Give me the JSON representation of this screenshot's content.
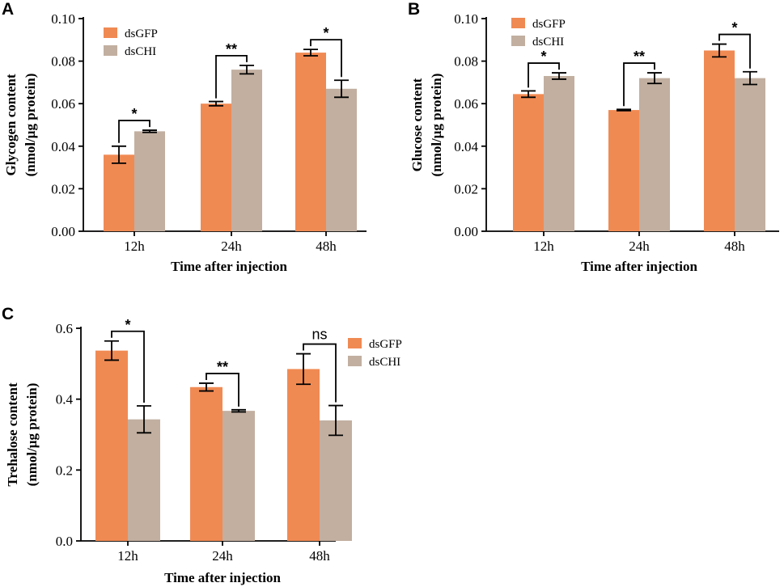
{
  "colors": {
    "dsGFP": "#F08A53",
    "dsCHI": "#C2AFA0"
  },
  "chart_data": [
    {
      "type": "bar",
      "panel": "A",
      "title": "",
      "categories": [
        "12h",
        "24h",
        "48h"
      ],
      "series": [
        {
          "name": "dsGFP",
          "values": [
            0.036,
            0.06,
            0.084
          ],
          "errors": [
            0.004,
            0.001,
            0.0015
          ]
        },
        {
          "name": "dsCHI",
          "values": [
            0.047,
            0.076,
            0.067
          ],
          "errors": [
            0.0005,
            0.002,
            0.004
          ]
        }
      ],
      "significance": [
        "*",
        "**",
        "*"
      ],
      "xlabel": "Time after injection",
      "ylabel_line1": "Glycogen content",
      "ylabel_line2": "(nmol/μg protein)",
      "ylim": [
        0,
        0.1
      ],
      "yticks": [
        "0.00",
        "0.02",
        "0.04",
        "0.06",
        "0.08",
        "0.10"
      ],
      "legend_position": "top-left"
    },
    {
      "type": "bar",
      "panel": "B",
      "title": "",
      "categories": [
        "12h",
        "24h",
        "48h"
      ],
      "series": [
        {
          "name": "dsGFP",
          "values": [
            0.0645,
            0.057,
            0.085
          ],
          "errors": [
            0.0015,
            0.0003,
            0.003
          ]
        },
        {
          "name": "dsCHI",
          "values": [
            0.073,
            0.072,
            0.072
          ],
          "errors": [
            0.0015,
            0.0025,
            0.003
          ]
        }
      ],
      "significance": [
        "*",
        "**",
        "*"
      ],
      "xlabel": "Time after injection",
      "ylabel_line1": "Glucose content",
      "ylabel_line2": "(nmol/μg protein)",
      "ylim": [
        0,
        0.1
      ],
      "yticks": [
        "0.00",
        "0.02",
        "0.04",
        "0.06",
        "0.08",
        "0.10"
      ],
      "legend_position": "top-left"
    },
    {
      "type": "bar",
      "panel": "C",
      "title": "",
      "categories": [
        "12h",
        "24h",
        "48h"
      ],
      "series": [
        {
          "name": "dsGFP",
          "values": [
            0.537,
            0.434,
            0.485
          ],
          "errors": [
            0.027,
            0.011,
            0.043
          ]
        },
        {
          "name": "dsCHI",
          "values": [
            0.343,
            0.367,
            0.34
          ],
          "errors": [
            0.038,
            0.003,
            0.042
          ]
        }
      ],
      "significance": [
        "*",
        "**",
        "ns"
      ],
      "xlabel": "Time after injection",
      "ylabel_line1": "Trehalose content",
      "ylabel_line2": "(nmol/μg protein)",
      "ylim": [
        0,
        0.6
      ],
      "yticks": [
        "0.0",
        "0.2",
        "0.4",
        "0.6"
      ],
      "legend_position": "top-right"
    }
  ]
}
